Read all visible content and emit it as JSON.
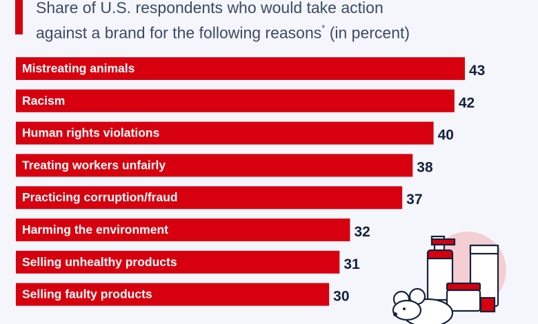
{
  "subtitle": {
    "line1": "Share of U.S. respondents who would take action",
    "line2": "against a brand for the following reasons",
    "asterisk": "*",
    "line2_suffix": " (in percent)"
  },
  "colors": {
    "accent": "#d7000f",
    "bar": "#d7000f",
    "value_text": "#14213d",
    "subtitle_text": "#3b4a63",
    "background": "#f4f6fb"
  },
  "chart_data": {
    "type": "bar",
    "orientation": "horizontal",
    "categories": [
      "Mistreating animals",
      "Racism",
      "Human rights violations",
      "Treating workers unfairly",
      "Practicing corruption/fraud",
      "Harming the environment",
      "Selling unhealthy products",
      "Selling faulty products"
    ],
    "values": [
      43,
      42,
      40,
      38,
      37,
      32,
      31,
      30
    ],
    "xlim": [
      0,
      43
    ],
    "grid": false,
    "legend": "none"
  },
  "illustration": {
    "icons": [
      "cosmetics-bottle-icon",
      "cream-tube-icon",
      "jar-icon",
      "mouse-icon"
    ]
  }
}
